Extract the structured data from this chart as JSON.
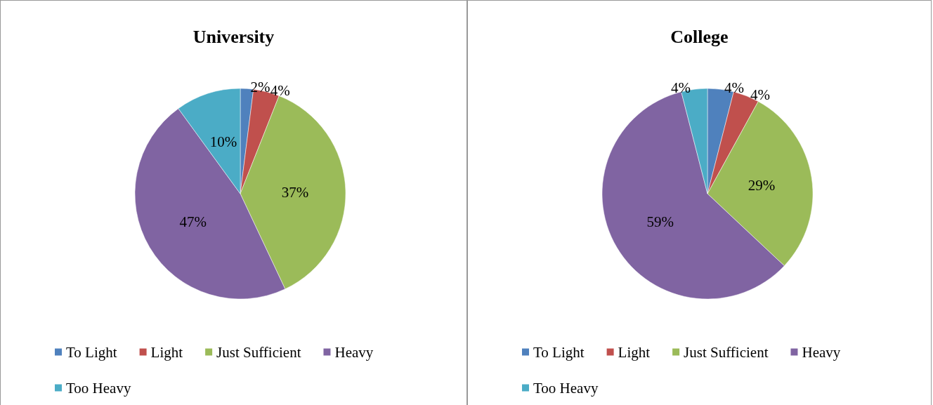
{
  "chart_data": [
    {
      "type": "pie",
      "title": "University",
      "categories": [
        "To Light",
        "Light",
        "Just Sufficient",
        "Heavy",
        "Too Heavy"
      ],
      "values": [
        2,
        4,
        37,
        47,
        10
      ],
      "colors": [
        "#4f81bd",
        "#c0504d",
        "#9bbb59",
        "#8064a2",
        "#4bacc6"
      ],
      "value_labels": [
        "2%",
        "4%",
        "37%",
        "47%",
        "10%"
      ],
      "legend": "bottom"
    },
    {
      "type": "pie",
      "title": "College",
      "categories": [
        "To Light",
        "Light",
        "Just Sufficient",
        "Heavy",
        "Too Heavy"
      ],
      "values": [
        4,
        4,
        29,
        59,
        4
      ],
      "colors": [
        "#4f81bd",
        "#c0504d",
        "#9bbb59",
        "#8064a2",
        "#4bacc6"
      ],
      "value_labels": [
        "4%",
        "4%",
        "29%",
        "59%",
        "4%"
      ],
      "legend": "bottom"
    }
  ]
}
